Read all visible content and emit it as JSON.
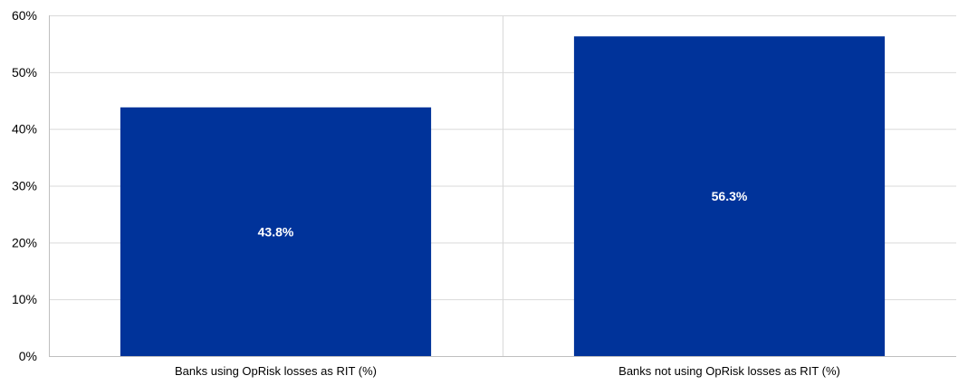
{
  "chart_data": {
    "type": "bar",
    "title": "",
    "xlabel": "",
    "ylabel": "",
    "categories": [
      "Banks using OpRisk losses as RIT (%)",
      "Banks not using OpRisk losses as RIT (%)"
    ],
    "values": [
      43.8,
      56.3
    ],
    "data_labels": [
      "43.8%",
      "56.3%"
    ],
    "ylim": [
      0,
      60
    ],
    "y_ticks": [
      0,
      10,
      20,
      30,
      40,
      50,
      60
    ],
    "y_tick_labels": [
      "0%",
      "10%",
      "20%",
      "30%",
      "40%",
      "50%",
      "60%"
    ],
    "grid": true,
    "legend": "none",
    "colors": {
      "bar": "#00339A",
      "grid": "#D9D9D9",
      "axis": "#BFBFBF",
      "data_label": "#FFFFFF"
    }
  }
}
